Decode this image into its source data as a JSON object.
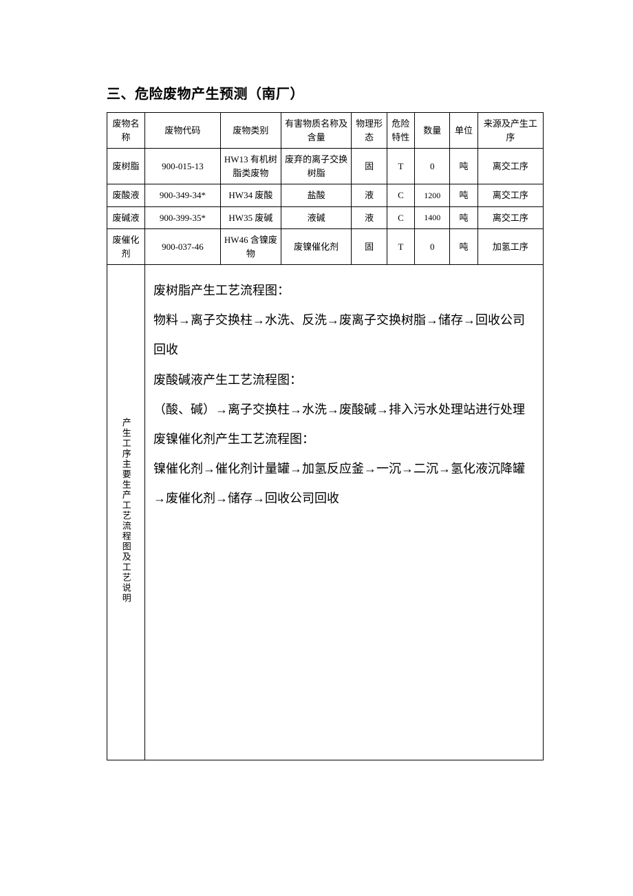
{
  "heading": "三、危险废物产生预测（南厂）",
  "columns": {
    "name": "废物名称",
    "code": "废物代码",
    "category": "废物类别",
    "harmful": "有害物质名称及含量",
    "form": "物理形态",
    "hazard": "危险特性",
    "qty": "数量",
    "unit": "单位",
    "source": "来源及产生工序"
  },
  "rows": [
    {
      "name": "废树脂",
      "code": "900-015-13",
      "category": "HW13 有机树脂类废物",
      "harmful": "废弃的离子交换树脂",
      "form": "固",
      "hazard": "T",
      "qty": "0",
      "unit": "吨",
      "source": "离交工序"
    },
    {
      "name": "废酸液",
      "code": "900-349-34*",
      "category": "HW34 废酸",
      "harmful": "盐酸",
      "form": "液",
      "hazard": "C",
      "qty": "1200",
      "unit": "吨",
      "source": "离交工序"
    },
    {
      "name": "废碱液",
      "code": "900-399-35*",
      "category": "HW35 废碱",
      "harmful": "液碱",
      "form": "液",
      "hazard": "C",
      "qty": "1400",
      "unit": "吨",
      "source": "离交工序"
    },
    {
      "name": "废催化剂",
      "code": "900-037-46",
      "category": "HW46 含镍废物",
      "harmful": "废镍催化剂",
      "form": "固",
      "hazard": "T",
      "qty": "0",
      "unit": "吨",
      "source": "加氢工序"
    }
  ],
  "process": {
    "label": "产生工序主要生产工艺流程图及工艺说明",
    "lines": [
      "废树脂产生工艺流程图：",
      "物料→离子交换柱→水洗、反洗→废离子交换树脂→储存→回收公司回收",
      "废酸碱液产生工艺流程图：",
      "（酸、碱）→离子交换柱→水洗→废酸碱→排入污水处理站进行处理",
      "废镍催化剂产生工艺流程图：",
      "镍催化剂→催化剂计量罐→加氢反应釜→一沉→二沉→氢化液沉降罐→废催化剂→储存→回收公司回收"
    ]
  },
  "colors": {
    "ink": "#000000",
    "paper": "#ffffff"
  }
}
